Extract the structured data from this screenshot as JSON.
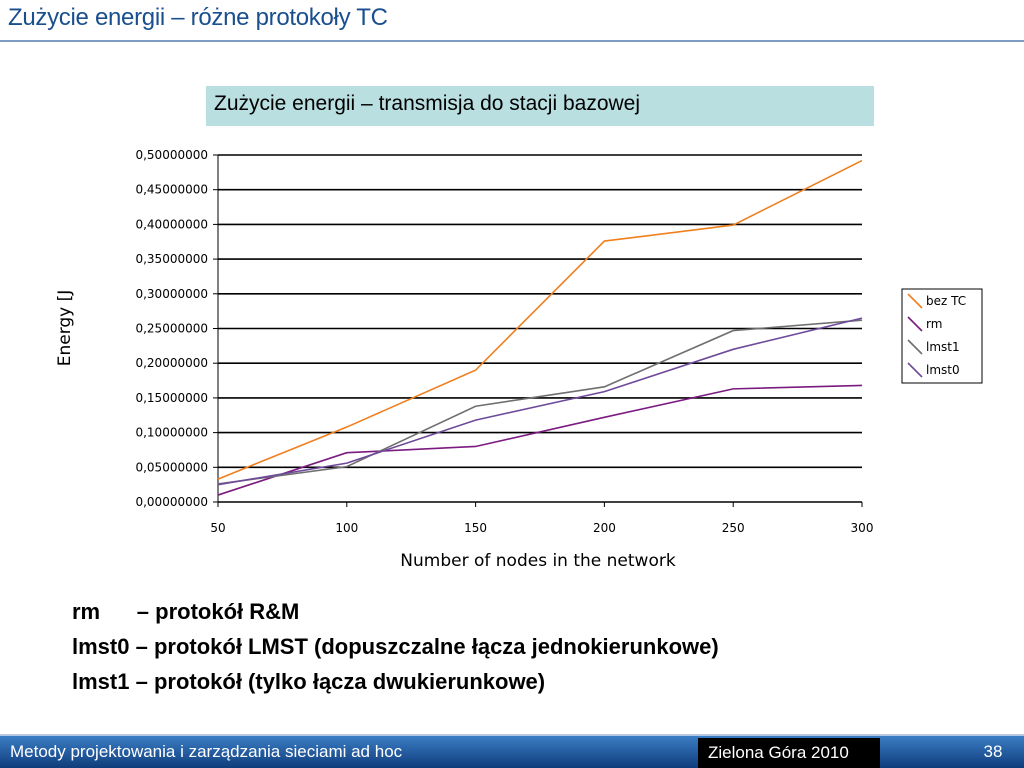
{
  "slide": {
    "title": "Zużycie energii – różne protokoły TC",
    "caption": "Zużycie energii – transmisja do stacji bazowej"
  },
  "chart_data": {
    "type": "line",
    "x": [
      50,
      100,
      150,
      200,
      250,
      300
    ],
    "xlabel": "Number of nodes in the network",
    "ylabel": "Energy [J",
    "xlim": [
      50,
      300
    ],
    "ylim": [
      0,
      0.5
    ],
    "x_ticks": [
      "50",
      "100",
      "150",
      "200",
      "250",
      "300"
    ],
    "y_ticks": [
      "0,00000000",
      "0,05000000",
      "0,10000000",
      "0,15000000",
      "0,20000000",
      "0,25000000",
      "0,30000000",
      "0,35000000",
      "0,40000000",
      "0,45000000",
      "0,50000000"
    ],
    "grid": "horizontal",
    "legend_position": "right",
    "series": [
      {
        "name": "bez TC",
        "color": "#f07f1e",
        "values": [
          0.033,
          0.108,
          0.19,
          0.376,
          0.399,
          0.492
        ]
      },
      {
        "name": "rm",
        "color": "#7b1a80",
        "values": [
          0.01,
          0.071,
          0.08,
          0.122,
          0.163,
          0.168
        ]
      },
      {
        "name": "lmst1",
        "color": "#6f6f6f",
        "values": [
          0.026,
          0.051,
          0.138,
          0.166,
          0.247,
          0.262
        ]
      },
      {
        "name": "lmst0",
        "color": "#6e4a9a",
        "values": [
          0.025,
          0.056,
          0.118,
          0.159,
          0.22,
          0.265
        ]
      }
    ]
  },
  "notes": [
    {
      "key": "rm      ",
      "text": "– protokół R&M"
    },
    {
      "key": "lmst0 ",
      "text": "– protokół LMST (dopuszczalne łącza jednokierunkowe)"
    },
    {
      "key": "lmst1 ",
      "text": "– protokół (tylko łącza dwukierunkowe)"
    }
  ],
  "footer": {
    "left": "Metody projektowania i zarządzania sieciami ad hoc",
    "center": "Zielona Góra 2010",
    "page": "38"
  }
}
